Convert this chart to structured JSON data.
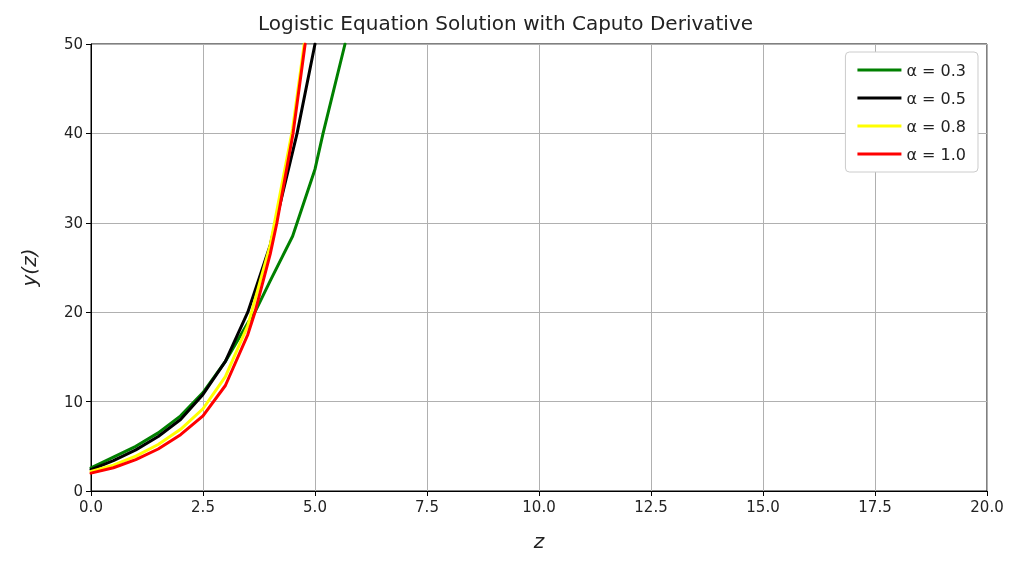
{
  "chart_data": {
    "type": "line",
    "title": "Logistic Equation Solution with Caputo Derivative",
    "xlabel": "z",
    "ylabel": "y(z)",
    "xlim": [
      0,
      20
    ],
    "xticks": [
      {
        "value": 0,
        "label": "0.0"
      },
      2.5,
      {
        "value": 5,
        "label": "5.0"
      },
      7.5,
      {
        "value": 10,
        "label": "10.0"
      },
      12.5,
      {
        "value": 15,
        "label": "15.0"
      },
      17.5,
      {
        "value": 20,
        "label": "20.0"
      }
    ],
    "ylim": [
      0,
      50
    ],
    "yticks": [
      0,
      10,
      20,
      30,
      40,
      50
    ],
    "grid": true,
    "legend": "top right",
    "marker": "none",
    "line_style": "solid",
    "series": [
      {
        "name": "α = 0.3",
        "color": "#008000",
        "x": [
          0,
          0.5,
          1,
          1.5,
          2,
          2.5,
          3,
          3.5,
          3.66,
          4,
          4.5,
          5,
          5.18,
          5.67
        ],
        "values": [
          2.6,
          3.8,
          5,
          6.5,
          8.4,
          11,
          14.5,
          18.8,
          20,
          23.5,
          28.5,
          36,
          40,
          50
        ]
      },
      {
        "name": "α = 0.5",
        "color": "#000000",
        "x": [
          0,
          0.5,
          1,
          1.5,
          2,
          2.5,
          3,
          3.5,
          4,
          4.6,
          5.0
        ],
        "values": [
          2.4,
          3.4,
          4.6,
          6.1,
          8,
          10.8,
          14.5,
          20,
          27.5,
          40,
          50
        ]
      },
      {
        "name": "α = 0.8",
        "color": "#ffff00",
        "x": [
          0,
          0.5,
          1,
          1.5,
          2,
          2.5,
          3,
          3.5,
          4,
          4.5,
          4.76
        ],
        "values": [
          2.2,
          2.9,
          3.9,
          5.2,
          6.9,
          9.2,
          12.8,
          18.5,
          27.5,
          40.5,
          50
        ]
      },
      {
        "name": "α = 1.0",
        "color": "#ff0000",
        "x": [
          0,
          0.5,
          1,
          1.5,
          2,
          2.5,
          3,
          3.5,
          3.66,
          4,
          4.15,
          4.51,
          4.78
        ],
        "values": [
          2,
          2.6,
          3.5,
          4.7,
          6.3,
          8.4,
          11.8,
          17.5,
          20,
          26.5,
          30,
          40,
          50
        ]
      }
    ]
  }
}
